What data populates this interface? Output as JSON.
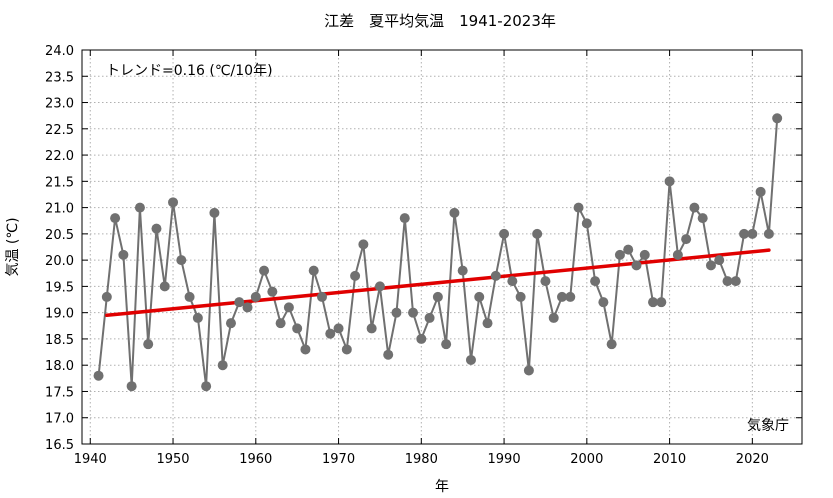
{
  "chart_data": {
    "type": "line",
    "title": "江差　夏平均気温　1941-2023年",
    "xlabel": "年",
    "ylabel": "気温 (℃)",
    "xlim": [
      1939,
      2026
    ],
    "ylim": [
      16.5,
      24.0
    ],
    "xticks": [
      1940,
      1950,
      1960,
      1970,
      1980,
      1990,
      2000,
      2010,
      2020
    ],
    "yticks": [
      16.5,
      17.0,
      17.5,
      18.0,
      18.5,
      19.0,
      19.5,
      20.0,
      20.5,
      21.0,
      21.5,
      22.0,
      22.5,
      23.0,
      23.5,
      24.0
    ],
    "grid": true,
    "trend_label": "トレンド=0.16 (℃/10年)",
    "source": "気象庁",
    "colors": {
      "series": "#707070",
      "trend": "#e00000"
    },
    "x": [
      1941,
      1942,
      1943,
      1944,
      1945,
      1946,
      1947,
      1948,
      1949,
      1950,
      1951,
      1952,
      1953,
      1954,
      1955,
      1956,
      1957,
      1958,
      1959,
      1960,
      1961,
      1962,
      1963,
      1964,
      1965,
      1966,
      1967,
      1968,
      1969,
      1970,
      1971,
      1972,
      1973,
      1974,
      1975,
      1976,
      1977,
      1978,
      1979,
      1980,
      1981,
      1982,
      1983,
      1984,
      1985,
      1986,
      1987,
      1988,
      1989,
      1990,
      1991,
      1992,
      1993,
      1994,
      1995,
      1996,
      1997,
      1998,
      1999,
      2000,
      2001,
      2002,
      2003,
      2004,
      2005,
      2006,
      2007,
      2008,
      2009,
      2010,
      2011,
      2012,
      2013,
      2014,
      2015,
      2016,
      2017,
      2018,
      2019,
      2020,
      2021,
      2022,
      2023
    ],
    "series": [
      {
        "values": [
          17.8,
          19.3,
          20.8,
          20.1,
          17.6,
          21.0,
          18.4,
          20.6,
          19.5,
          21.1,
          20.0,
          19.3,
          18.9,
          17.6,
          20.9,
          18.0,
          18.8,
          19.2,
          19.1,
          19.3,
          19.8,
          19.4,
          18.8,
          19.1,
          18.7,
          18.3,
          19.8,
          19.3,
          18.6,
          18.7,
          18.3,
          19.7,
          20.3,
          18.7,
          19.5,
          18.2,
          19.0,
          20.8,
          19.0,
          18.5,
          18.9,
          19.3,
          18.4,
          20.9,
          19.8,
          18.1,
          19.3,
          18.8,
          19.7,
          20.5,
          19.6,
          19.3,
          17.9,
          20.5,
          19.6,
          18.9,
          19.3,
          19.3,
          21.0,
          20.7,
          19.6,
          19.2,
          18.4,
          20.1,
          20.2,
          19.9,
          20.1,
          19.2,
          19.2,
          21.5,
          20.1,
          20.4,
          21.0,
          20.8,
          19.9,
          20.0,
          19.6,
          19.6,
          20.5,
          20.5,
          21.3,
          20.5,
          22.7
        ]
      }
    ],
    "trend": {
      "x": [
        1942,
        2022
      ],
      "y": [
        18.95,
        20.19
      ]
    }
  }
}
